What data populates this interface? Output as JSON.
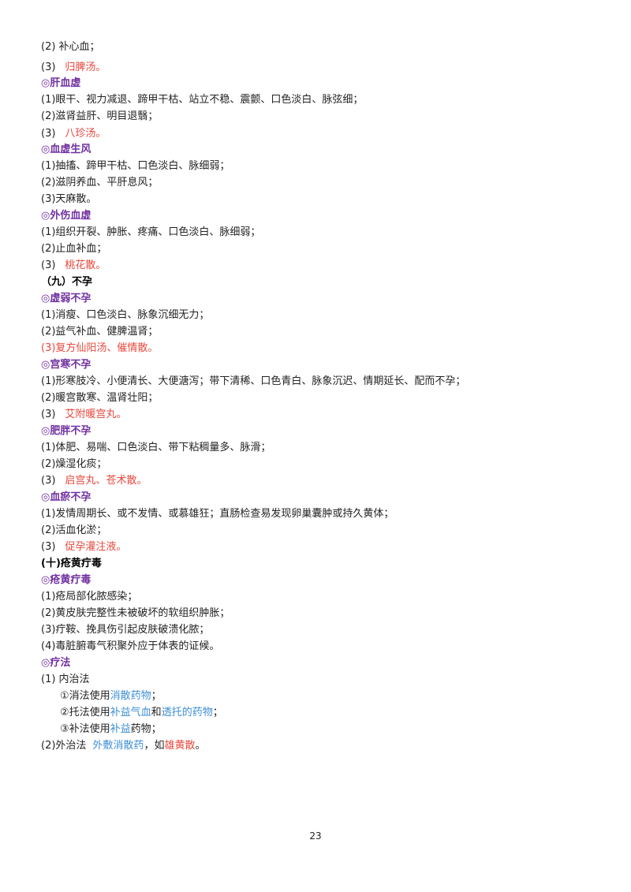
{
  "colors": {
    "heading": "#7030a0",
    "red": "#e8473c",
    "blue": "#3d8fd6"
  },
  "lines": {
    "l0": "(2) 补心血；",
    "l1a": "(3)",
    "l1b": "归脾汤。",
    "h1": "◎肝血虚",
    "l2": "(1)眼干、视力减退、蹄甲干枯、站立不稳、震颤、口色淡白、脉弦细；",
    "l3": "(2)滋肾益肝、明目退翳；",
    "l4a": "(3)",
    "l4b": "八珍汤。",
    "h2": "◎血虚生风",
    "l5": "(1)抽搐、蹄甲干枯、口色淡白、脉细弱；",
    "l6": "(2)滋阴养血、平肝息风；",
    "l7": "(3)天麻散。",
    "h3": "◎外伤血虚",
    "l8": "(1)组织开裂、肿胀、疼痛、口色淡白、脉细弱；",
    "l9": "(2)止血补血；",
    "l10a": "(3)",
    "l10b": "桃花散。",
    "s1": "（九）不孕",
    "h4": "◎虚弱不孕",
    "l11": "(1)消瘦、口色淡白、脉象沉细无力；",
    "l12": "(2)益气补血、健脾温肾；",
    "l13": "(3)复方仙阳汤、催情散。",
    "h5": "◎宫寒不孕",
    "l14": "(1)形寒肢冷、小便清长、大便溏泻；带下清稀、口色青白、脉象沉迟、情期延长、配而不孕；",
    "l15": "(2)暖宫散寒、温肾壮阳；",
    "l16a": "(3)",
    "l16b": "艾附暖宫丸。",
    "h6": "◎肥胖不孕",
    "l17": "(1)体肥、易喘、口色淡白、带下粘稠量多、脉滑；",
    "l18": "(2)燥湿化痰；",
    "l19a": "(3)",
    "l19b": "启宫丸、",
    "l19c": "苍术散。",
    "h7": "◎血瘀不孕",
    "l20": "(1)发情周期长、或不发情、或慕雄狂；直肠检查易发现卵巢囊肿或持久黄体；",
    "l21": "(2)活血化淤；",
    "l22a": "(3)",
    "l22b": "促孕灌注液。",
    "s2": "(十)疮黄疔毒",
    "h8": "◎疮黄疔毒",
    "l23": "(1)疮局部化脓感染；",
    "l24": "(2)黄皮肤完整性未被破坏的软组织肿胀；",
    "l25": "(3)疔鞍、挽具伤引起皮肤破溃化脓；",
    "l26": "(4)毒脏腑毒气积聚外应于体表的证候。",
    "h9": "◎疗法",
    "l27": "(1) 内治法",
    "l28a": "①消法使用",
    "l28b": "消散药物",
    "l28c": "；",
    "l29a": "②托法使用",
    "l29b": "补益气血",
    "l29c": "和",
    "l29d": "透托的药物",
    "l29e": "；",
    "l30a": "③补法使用",
    "l30b": "补益",
    "l30c": "药物；",
    "l31a": "(2)外治法",
    "l31b": "外敷消散药",
    "l31c": "，如",
    "l31d": "雄黄散",
    "l31e": "。"
  },
  "page_number": "23"
}
